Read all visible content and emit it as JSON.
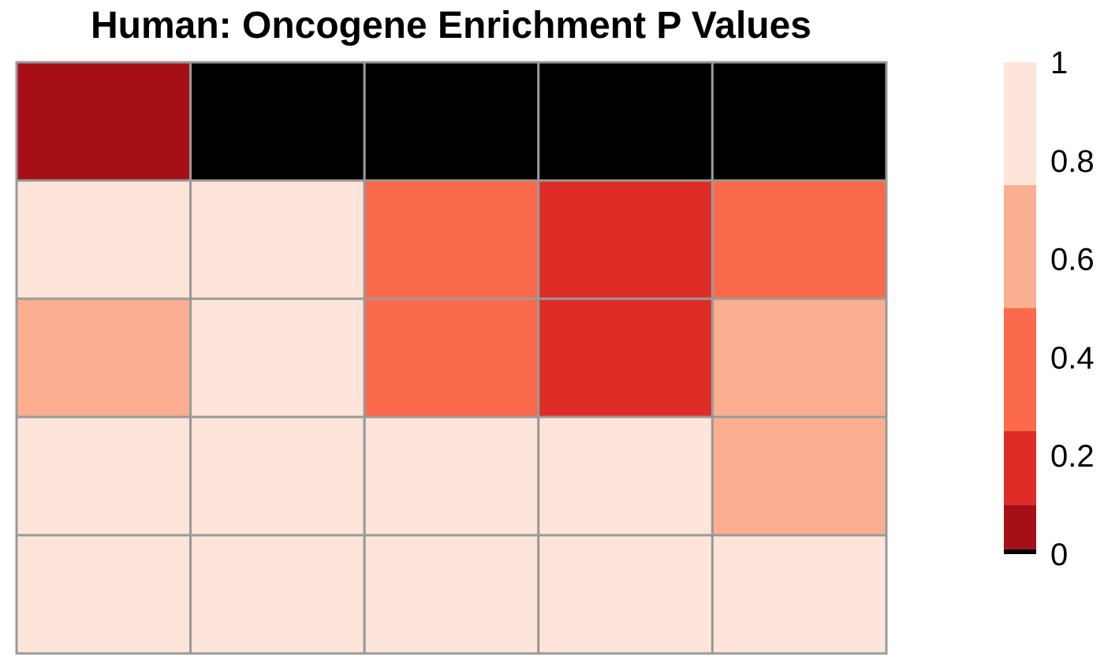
{
  "chart_data": {
    "type": "heatmap",
    "title": "Human: Oncogene Enrichment P Values",
    "rows": 5,
    "cols": 5,
    "values": [
      [
        0.05,
        0.0,
        0.0,
        0.0,
        0.0
      ],
      [
        0.9,
        0.9,
        0.4,
        0.2,
        0.4
      ],
      [
        0.6,
        0.9,
        0.4,
        0.2,
        0.6
      ],
      [
        0.9,
        0.9,
        0.9,
        0.9,
        0.6
      ],
      [
        0.9,
        0.9,
        0.9,
        0.9,
        0.9
      ]
    ],
    "color_scale": {
      "breaks": [
        0,
        0.01,
        0.1,
        0.25,
        0.5,
        0.75,
        1
      ],
      "colors": [
        "#000000",
        "#a50f15",
        "#de2d26",
        "#fb6a4a",
        "#fcae91",
        "#fee5d9"
      ]
    },
    "legend": {
      "position": "right",
      "ticks": [
        "0",
        "0.2",
        "0.4",
        "0.6",
        "0.8",
        "1"
      ],
      "tick_values": [
        0,
        0.2,
        0.4,
        0.6,
        0.8,
        1
      ]
    },
    "grid_color": "#999999"
  }
}
